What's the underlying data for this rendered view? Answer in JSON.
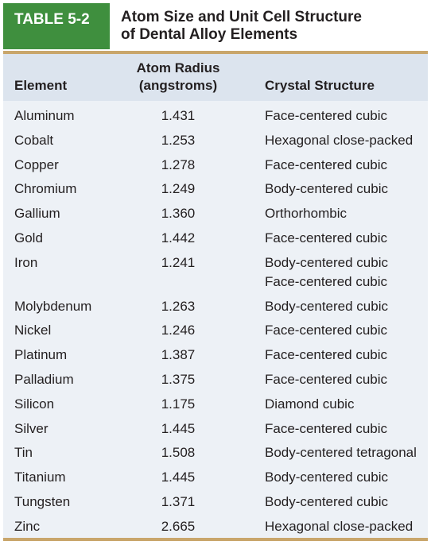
{
  "table": {
    "label": "TABLE 5-2",
    "title_line1": "Atom Size and Unit Cell Structure",
    "title_line2": "of Dental Alloy Elements",
    "columns": {
      "element": "Element",
      "radius_line1": "Atom Radius",
      "radius_line2": "(angstroms)",
      "crystal": "Crystal Structure"
    },
    "rows": [
      {
        "element": "Aluminum",
        "radius": "1.431",
        "crystal": [
          "Face-centered cubic"
        ]
      },
      {
        "element": "Cobalt",
        "radius": "1.253",
        "crystal": [
          "Hexagonal close-packed"
        ]
      },
      {
        "element": "Copper",
        "radius": "1.278",
        "crystal": [
          "Face-centered cubic"
        ]
      },
      {
        "element": "Chromium",
        "radius": "1.249",
        "crystal": [
          "Body-centered cubic"
        ]
      },
      {
        "element": "Gallium",
        "radius": "1.360",
        "crystal": [
          "Orthorhombic"
        ]
      },
      {
        "element": "Gold",
        "radius": "1.442",
        "crystal": [
          "Face-centered cubic"
        ]
      },
      {
        "element": "Iron",
        "radius": "1.241",
        "crystal": [
          "Body-centered cubic",
          "Face-centered cubic"
        ]
      },
      {
        "element": "Molybdenum",
        "radius": "1.263",
        "crystal": [
          "Body-centered cubic"
        ]
      },
      {
        "element": "Nickel",
        "radius": "1.246",
        "crystal": [
          "Face-centered cubic"
        ]
      },
      {
        "element": "Platinum",
        "radius": "1.387",
        "crystal": [
          "Face-centered cubic"
        ]
      },
      {
        "element": "Palladium",
        "radius": "1.375",
        "crystal": [
          "Face-centered cubic"
        ]
      },
      {
        "element": "Silicon",
        "radius": "1.175",
        "crystal": [
          "Diamond cubic"
        ]
      },
      {
        "element": "Silver",
        "radius": "1.445",
        "crystal": [
          "Face-centered cubic"
        ]
      },
      {
        "element": "Tin",
        "radius": "1.508",
        "crystal": [
          "Body-centered tetragonal"
        ]
      },
      {
        "element": "Titanium",
        "radius": "1.445",
        "crystal": [
          "Body-centered cubic"
        ]
      },
      {
        "element": "Tungsten",
        "radius": "1.371",
        "crystal": [
          "Body-centered cubic"
        ]
      },
      {
        "element": "Zinc",
        "radius": "2.665",
        "crystal": [
          "Hexagonal close-packed"
        ]
      }
    ]
  },
  "colors": {
    "label_bg": "#3f8f3e",
    "rule": "#c9a66b",
    "column_header_bg": "#dce4ee",
    "body_bg": "#edf1f6"
  }
}
